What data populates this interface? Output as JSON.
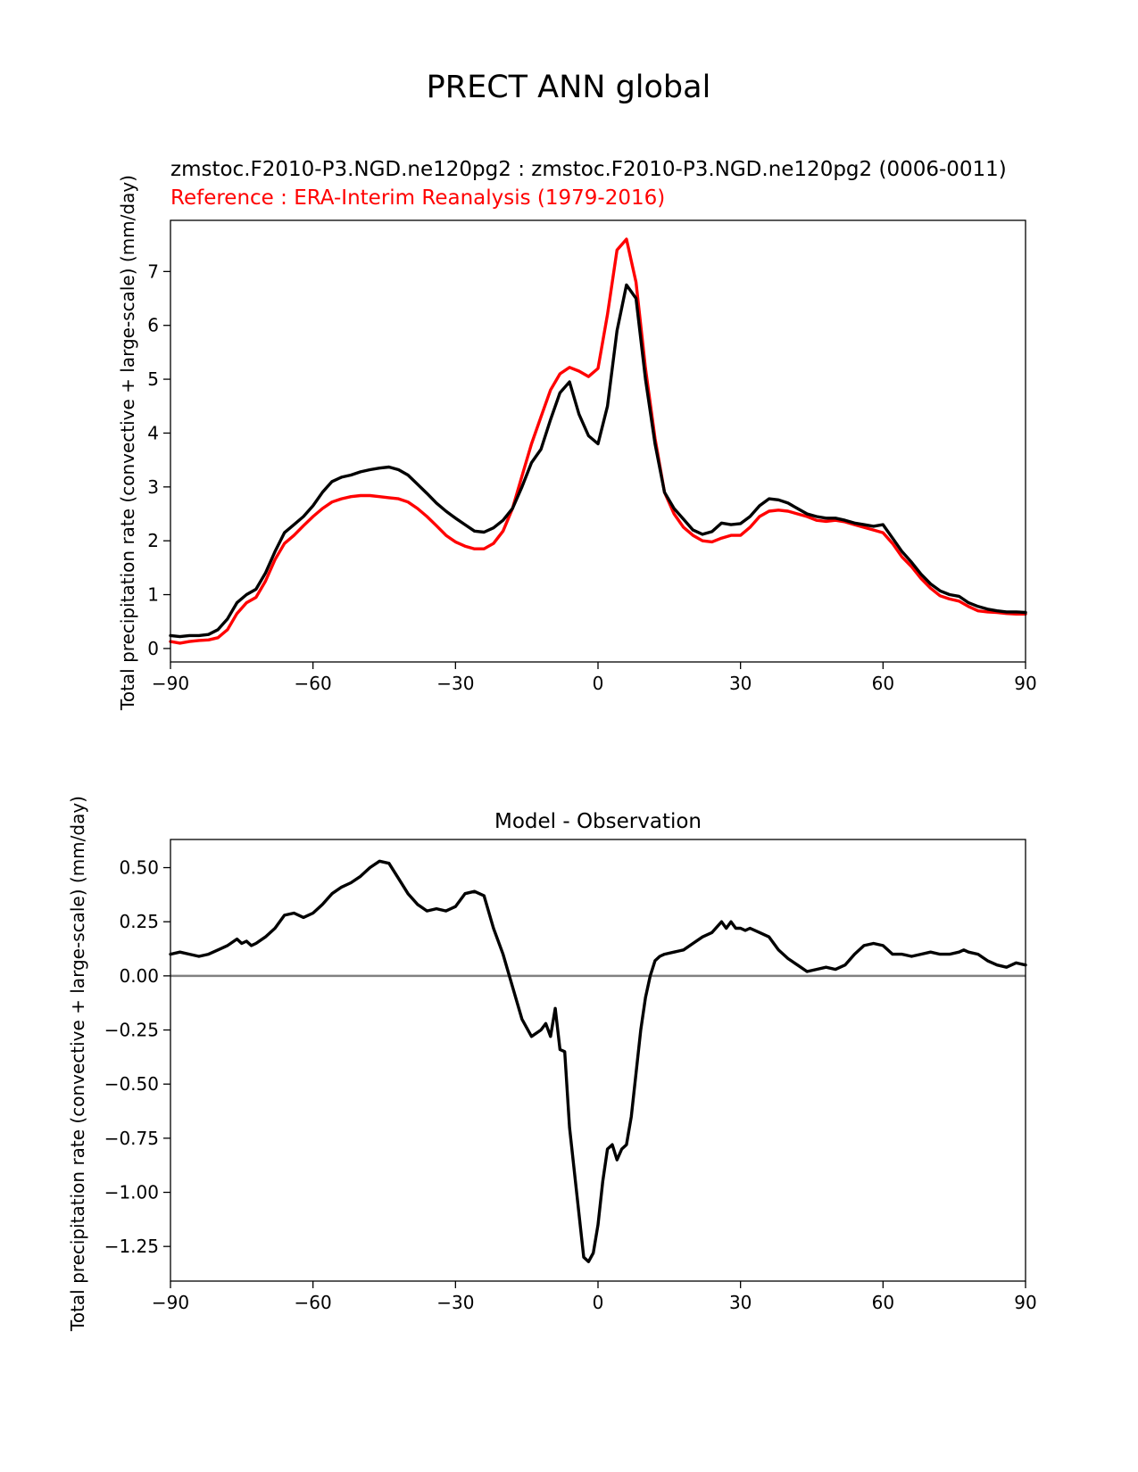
{
  "page_title": "PRECT ANN global",
  "colors": {
    "test": "#000000",
    "reference": "#ff0000",
    "zero_line": "#808080"
  },
  "chart_data": [
    {
      "type": "line",
      "subtitle_test": "zmstoc.F2010-P3.NGD.ne120pg2 : zmstoc.F2010-P3.NGD.ne120pg2 (0006-0011)",
      "subtitle_ref": "Reference : ERA-Interim Reanalysis (1979-2016)",
      "ylabel": "Total precipitation rate (convective + large-scale) (mm/day)",
      "xlabel": "",
      "xlim": [
        -90,
        90
      ],
      "ylim": [
        -0.25,
        7.95
      ],
      "xticks": [
        -90,
        -60,
        -30,
        0,
        30,
        60,
        90
      ],
      "xtick_labels": [
        "−90",
        "−60",
        "−30",
        "0",
        "30",
        "60",
        "90"
      ],
      "yticks": [
        0,
        1,
        2,
        3,
        4,
        5,
        6,
        7
      ],
      "ytick_labels": [
        "0",
        "1",
        "2",
        "3",
        "4",
        "5",
        "6",
        "7"
      ],
      "series": [
        {
          "name": "test",
          "x": [
            -90,
            -88,
            -86,
            -84,
            -82,
            -80,
            -78,
            -76,
            -74,
            -72,
            -70,
            -68,
            -66,
            -64,
            -62,
            -60,
            -58,
            -56,
            -54,
            -52,
            -50,
            -48,
            -46,
            -44,
            -42,
            -40,
            -38,
            -36,
            -34,
            -32,
            -30,
            -28,
            -26,
            -24,
            -22,
            -20,
            -18,
            -16,
            -14,
            -12,
            -10,
            -8,
            -6,
            -4,
            -2,
            0,
            2,
            4,
            6,
            8,
            10,
            12,
            14,
            16,
            18,
            20,
            22,
            24,
            26,
            28,
            30,
            32,
            34,
            36,
            38,
            40,
            42,
            44,
            46,
            48,
            50,
            52,
            54,
            56,
            58,
            60,
            62,
            64,
            66,
            68,
            70,
            72,
            74,
            76,
            78,
            80,
            82,
            84,
            86,
            88,
            90
          ],
          "y": [
            0.24,
            0.22,
            0.24,
            0.24,
            0.26,
            0.35,
            0.55,
            0.85,
            1.0,
            1.1,
            1.4,
            1.8,
            2.15,
            2.3,
            2.45,
            2.65,
            2.9,
            3.1,
            3.18,
            3.22,
            3.28,
            3.32,
            3.35,
            3.37,
            3.32,
            3.22,
            3.05,
            2.88,
            2.7,
            2.55,
            2.42,
            2.3,
            2.18,
            2.16,
            2.24,
            2.38,
            2.6,
            3.0,
            3.45,
            3.7,
            4.25,
            4.75,
            4.95,
            4.35,
            3.95,
            3.8,
            4.5,
            5.9,
            6.75,
            6.5,
            5.0,
            3.8,
            2.9,
            2.6,
            2.4,
            2.2,
            2.12,
            2.17,
            2.33,
            2.3,
            2.32,
            2.45,
            2.65,
            2.78,
            2.76,
            2.7,
            2.6,
            2.5,
            2.45,
            2.42,
            2.42,
            2.38,
            2.33,
            2.3,
            2.27,
            2.3,
            2.05,
            1.8,
            1.6,
            1.38,
            1.2,
            1.07,
            1.0,
            0.97,
            0.85,
            0.78,
            0.73,
            0.7,
            0.68,
            0.68,
            0.67
          ]
        },
        {
          "name": "reference",
          "x": [
            -90,
            -88,
            -86,
            -84,
            -82,
            -80,
            -78,
            -76,
            -74,
            -72,
            -70,
            -68,
            -66,
            -64,
            -62,
            -60,
            -58,
            -56,
            -54,
            -52,
            -50,
            -48,
            -46,
            -44,
            -42,
            -40,
            -38,
            -36,
            -34,
            -32,
            -30,
            -28,
            -26,
            -24,
            -22,
            -20,
            -18,
            -16,
            -14,
            -12,
            -10,
            -8,
            -6,
            -4,
            -2,
            0,
            2,
            4,
            6,
            8,
            10,
            12,
            14,
            16,
            18,
            20,
            22,
            24,
            26,
            28,
            30,
            32,
            34,
            36,
            38,
            40,
            42,
            44,
            46,
            48,
            50,
            52,
            54,
            56,
            58,
            60,
            62,
            64,
            66,
            68,
            70,
            72,
            74,
            76,
            78,
            80,
            82,
            84,
            86,
            88,
            90
          ],
          "y": [
            0.13,
            0.1,
            0.13,
            0.15,
            0.16,
            0.2,
            0.35,
            0.65,
            0.85,
            0.95,
            1.25,
            1.65,
            1.95,
            2.1,
            2.28,
            2.45,
            2.6,
            2.72,
            2.78,
            2.82,
            2.84,
            2.84,
            2.82,
            2.8,
            2.78,
            2.72,
            2.6,
            2.45,
            2.28,
            2.1,
            1.98,
            1.9,
            1.85,
            1.85,
            1.95,
            2.18,
            2.6,
            3.2,
            3.8,
            4.3,
            4.8,
            5.1,
            5.22,
            5.15,
            5.05,
            5.2,
            6.2,
            7.4,
            7.6,
            6.8,
            5.2,
            3.9,
            2.9,
            2.5,
            2.25,
            2.1,
            2.0,
            1.98,
            2.05,
            2.1,
            2.1,
            2.25,
            2.45,
            2.55,
            2.57,
            2.55,
            2.5,
            2.45,
            2.38,
            2.36,
            2.38,
            2.35,
            2.3,
            2.25,
            2.2,
            2.15,
            1.95,
            1.7,
            1.52,
            1.3,
            1.12,
            0.98,
            0.92,
            0.88,
            0.78,
            0.7,
            0.68,
            0.67,
            0.65,
            0.64,
            0.64
          ]
        }
      ]
    },
    {
      "type": "line",
      "title": "Model - Observation",
      "ylabel": "Total precipitation rate (convective + large-scale) (mm/day)",
      "xlabel": "",
      "xlim": [
        -90,
        90
      ],
      "ylim": [
        -1.41,
        0.63
      ],
      "xticks": [
        -90,
        -60,
        -30,
        0,
        30,
        60,
        90
      ],
      "xtick_labels": [
        "−90",
        "−60",
        "−30",
        "0",
        "30",
        "60",
        "90"
      ],
      "yticks": [
        0.5,
        0.25,
        0.0,
        -0.25,
        -0.5,
        -0.75,
        -1.0,
        -1.25
      ],
      "ytick_labels": [
        "0.50",
        "0.25",
        "0.00",
        "−0.25",
        "−0.50",
        "−0.75",
        "−1.00",
        "−1.25"
      ],
      "zero_line": 0.0,
      "series": [
        {
          "name": "difference",
          "x": [
            -90,
            -88,
            -86,
            -84,
            -82,
            -80,
            -78,
            -76,
            -75,
            -74,
            -73,
            -72,
            -70,
            -68,
            -66,
            -64,
            -62,
            -60,
            -58,
            -56,
            -54,
            -52,
            -50,
            -48,
            -46,
            -44,
            -42,
            -40,
            -38,
            -36,
            -34,
            -32,
            -30,
            -28,
            -26,
            -24,
            -22,
            -20,
            -18,
            -16,
            -14,
            -12,
            -11,
            -10,
            -9,
            -8,
            -7,
            -6,
            -5,
            -4,
            -3,
            -2,
            -1,
            0,
            1,
            2,
            3,
            4,
            5,
            6,
            7,
            8,
            9,
            10,
            11,
            12,
            13,
            14,
            16,
            18,
            20,
            22,
            24,
            26,
            27,
            28,
            29,
            30,
            31,
            32,
            34,
            36,
            38,
            40,
            42,
            44,
            46,
            48,
            50,
            52,
            54,
            56,
            58,
            60,
            61,
            62,
            64,
            66,
            68,
            70,
            72,
            74,
            76,
            77,
            78,
            80,
            82,
            84,
            86,
            88,
            90
          ],
          "y": [
            0.1,
            0.11,
            0.1,
            0.09,
            0.1,
            0.12,
            0.14,
            0.17,
            0.15,
            0.16,
            0.14,
            0.15,
            0.18,
            0.22,
            0.28,
            0.29,
            0.27,
            0.29,
            0.33,
            0.38,
            0.41,
            0.43,
            0.46,
            0.5,
            0.53,
            0.52,
            0.45,
            0.38,
            0.33,
            0.3,
            0.31,
            0.3,
            0.32,
            0.38,
            0.39,
            0.37,
            0.22,
            0.1,
            -0.05,
            -0.2,
            -0.28,
            -0.25,
            -0.22,
            -0.28,
            -0.15,
            -0.34,
            -0.35,
            -0.7,
            -0.9,
            -1.1,
            -1.3,
            -1.32,
            -1.28,
            -1.15,
            -0.95,
            -0.8,
            -0.78,
            -0.85,
            -0.8,
            -0.78,
            -0.65,
            -0.45,
            -0.25,
            -0.1,
            0.0,
            0.07,
            0.09,
            0.1,
            0.11,
            0.12,
            0.15,
            0.18,
            0.2,
            0.25,
            0.22,
            0.25,
            0.22,
            0.22,
            0.21,
            0.22,
            0.2,
            0.18,
            0.12,
            0.08,
            0.05,
            0.02,
            0.03,
            0.04,
            0.03,
            0.05,
            0.1,
            0.14,
            0.15,
            0.14,
            0.12,
            0.1,
            0.1,
            0.09,
            0.1,
            0.11,
            0.1,
            0.1,
            0.11,
            0.12,
            0.11,
            0.1,
            0.07,
            0.05,
            0.04,
            0.06,
            0.05
          ]
        }
      ]
    }
  ]
}
